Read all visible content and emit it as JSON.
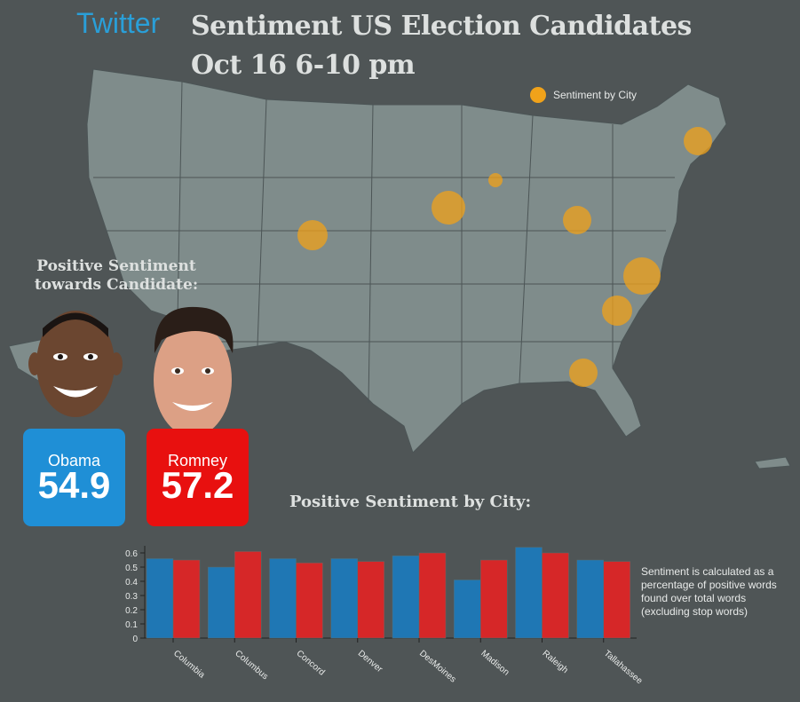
{
  "header": {
    "brand": "Twitter",
    "title_line1": "Sentiment US Election Candidates",
    "title_line2": "Oct 16 6-10 pm"
  },
  "map": {
    "legend_label": "Sentiment by City",
    "bubble_color": "#f0a21a",
    "land_color": "#7f8c8b",
    "bubbles": [
      {
        "city": "Concord",
        "size": 4
      },
      {
        "city": "Madison",
        "size": 2
      },
      {
        "city": "DesMoines",
        "size": 5
      },
      {
        "city": "Denver",
        "size": 4
      },
      {
        "city": "Columbus",
        "size": 4
      },
      {
        "city": "Raleigh",
        "size": 6
      },
      {
        "city": "Columbia",
        "size": 4
      },
      {
        "city": "Tallahassee",
        "size": 4
      }
    ]
  },
  "candidates": {
    "heading": "Positive Sentiment towards Candidate:",
    "obama": {
      "name": "Obama",
      "value": "54.9",
      "color": "#1f8fd6"
    },
    "romney": {
      "name": "Romney",
      "value": "57.2",
      "color": "#e8100f"
    }
  },
  "city_heading": "Positive Sentiment by City:",
  "note": "Sentiment is calculated as a percentage of positive words found over total words (excluding stop words)",
  "chart_data": {
    "type": "bar",
    "title": "Positive Sentiment by City:",
    "categories": [
      "Columbia",
      "Columbus",
      "Concord",
      "Denver",
      "DesMoines",
      "Madison",
      "Raleigh",
      "Tallahassee"
    ],
    "series": [
      {
        "name": "Obama",
        "color": "#1f77b4",
        "values": [
          0.56,
          0.5,
          0.56,
          0.56,
          0.58,
          0.41,
          0.64,
          0.55
        ]
      },
      {
        "name": "Romney",
        "color": "#d62728",
        "values": [
          0.55,
          0.61,
          0.53,
          0.54,
          0.6,
          0.55,
          0.6,
          0.54
        ]
      }
    ],
    "ylim": [
      0,
      0.65
    ],
    "yticks": [
      "0",
      "0.1",
      "0.2",
      "0.3",
      "0.4",
      "0.5",
      "0.6"
    ],
    "xlabel": "",
    "ylabel": ""
  }
}
